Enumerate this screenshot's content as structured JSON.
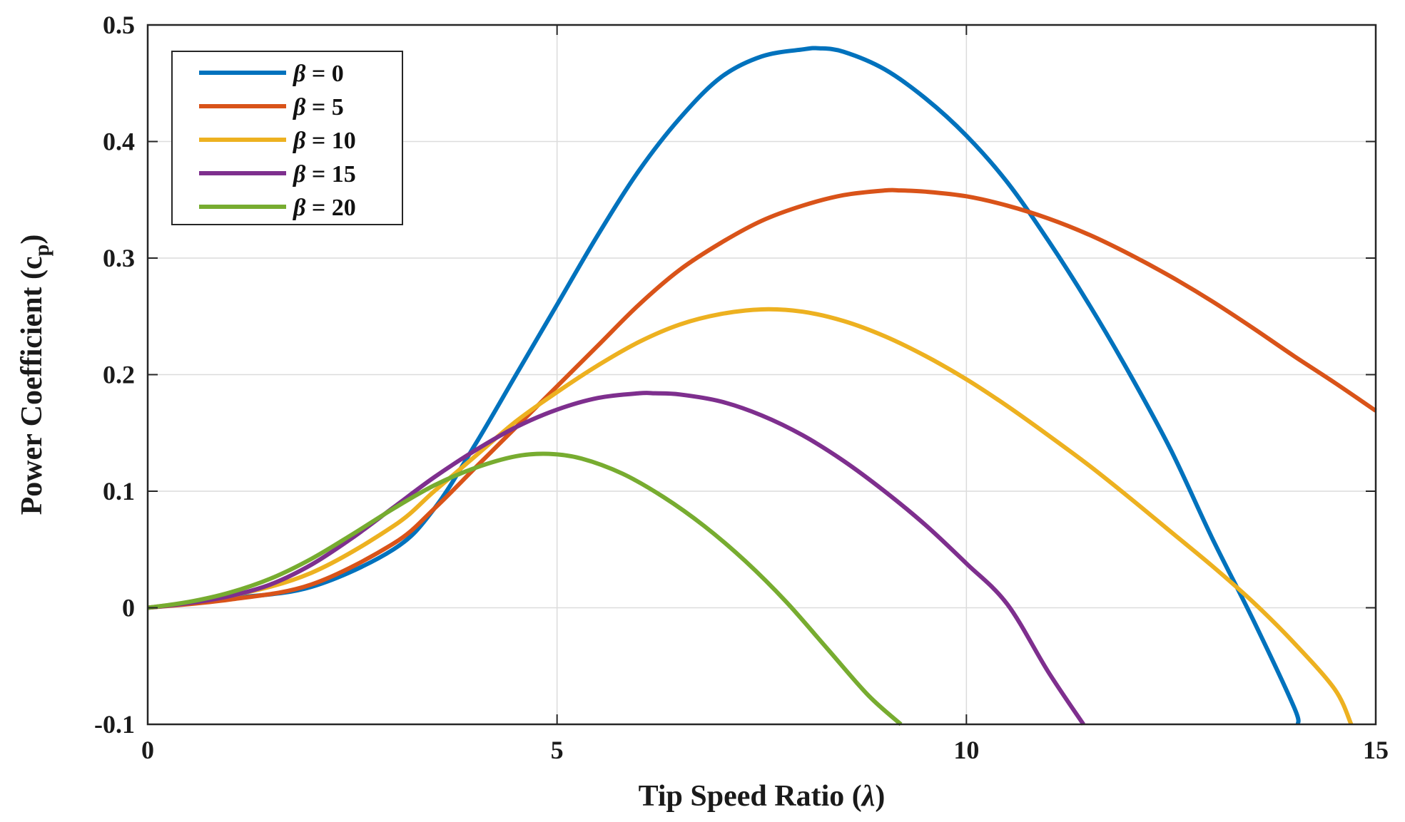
{
  "chart_data": {
    "type": "line",
    "title": "",
    "xlabel": "Tip Speed Ratio (",
    "xlabel_symbol": "λ",
    "xlabel_suffix": ")",
    "ylabel": "Power Coefficient (c",
    "ylabel_sub": "p",
    "ylabel_suffix": ")",
    "xlim": [
      0,
      15
    ],
    "ylim": [
      -0.1,
      0.5
    ],
    "xticks": [
      0,
      5,
      10,
      15
    ],
    "xtick_labels": [
      "0",
      "5",
      "10",
      "15"
    ],
    "yticks": [
      -0.1,
      0,
      0.1,
      0.2,
      0.3,
      0.4,
      0.5
    ],
    "ytick_labels": [
      "-0.1",
      "0",
      "0.1",
      "0.2",
      "0.3",
      "0.4",
      "0.5"
    ],
    "grid": true,
    "legend_position": "top-left",
    "series": [
      {
        "name": "β = 0",
        "greek": "β",
        "value_text": " = 0",
        "color": "#0072BD",
        "x": [
          0,
          1,
          2,
          3,
          3.5,
          4,
          4.5,
          5,
          5.5,
          6,
          6.5,
          7,
          7.5,
          8,
          8.2,
          8.5,
          9,
          9.5,
          10,
          10.5,
          11,
          11.5,
          12,
          12.5,
          13,
          13.5,
          14,
          14.05
        ],
        "y": [
          0,
          0.008,
          0.018,
          0.05,
          0.085,
          0.14,
          0.2,
          0.26,
          0.32,
          0.375,
          0.42,
          0.455,
          0.473,
          0.479,
          0.48,
          0.477,
          0.462,
          0.437,
          0.405,
          0.365,
          0.315,
          0.26,
          0.2,
          0.135,
          0.06,
          -0.01,
          -0.085,
          -0.1
        ]
      },
      {
        "name": "β = 5",
        "greek": "β",
        "value_text": " = 5",
        "color": "#D95319",
        "x": [
          0,
          1,
          2,
          3,
          3.5,
          4,
          4.5,
          5,
          5.5,
          6,
          6.5,
          7,
          7.5,
          8,
          8.5,
          9,
          9.2,
          9.5,
          10,
          10.5,
          11,
          11.5,
          12,
          12.5,
          13,
          13.5,
          14,
          14.5,
          15
        ],
        "y": [
          0,
          0.007,
          0.02,
          0.055,
          0.085,
          0.12,
          0.155,
          0.19,
          0.225,
          0.26,
          0.29,
          0.313,
          0.332,
          0.345,
          0.354,
          0.358,
          0.358,
          0.357,
          0.353,
          0.345,
          0.334,
          0.32,
          0.303,
          0.284,
          0.263,
          0.24,
          0.216,
          0.193,
          0.169
        ]
      },
      {
        "name": "β = 10",
        "greek": "β",
        "value_text": " = 10",
        "color": "#EDB120",
        "x": [
          0,
          1,
          2,
          3,
          3.5,
          4,
          4.5,
          5,
          5.5,
          6,
          6.5,
          7,
          7.5,
          8,
          8.5,
          9,
          9.5,
          10,
          10.5,
          11,
          11.5,
          12,
          12.5,
          13,
          13.5,
          14,
          14.5,
          14.7
        ],
        "y": [
          0,
          0.01,
          0.03,
          0.07,
          0.1,
          0.13,
          0.16,
          0.185,
          0.208,
          0.228,
          0.243,
          0.252,
          0.256,
          0.254,
          0.246,
          0.233,
          0.216,
          0.196,
          0.173,
          0.148,
          0.122,
          0.094,
          0.065,
          0.036,
          0.005,
          -0.03,
          -0.07,
          -0.1
        ]
      },
      {
        "name": "β = 15",
        "greek": "β",
        "value_text": " = 15",
        "color": "#7E2F8E",
        "x": [
          0,
          0.5,
          1,
          1.5,
          2,
          2.5,
          3,
          3.5,
          4,
          4.5,
          5,
          5.5,
          6,
          6.2,
          6.5,
          7,
          7.5,
          8,
          8.5,
          9,
          9.5,
          10,
          10.5,
          11,
          11.43
        ],
        "y": [
          0,
          0.004,
          0.01,
          0.02,
          0.037,
          0.06,
          0.086,
          0.112,
          0.135,
          0.155,
          0.17,
          0.18,
          0.184,
          0.184,
          0.183,
          0.177,
          0.165,
          0.148,
          0.126,
          0.1,
          0.071,
          0.038,
          0.003,
          -0.055,
          -0.1
        ]
      },
      {
        "name": "β = 20",
        "greek": "β",
        "value_text": " = 20",
        "color": "#77AC30",
        "x": [
          0,
          0.5,
          1,
          1.5,
          2,
          2.5,
          3,
          3.5,
          4,
          4.5,
          4.9,
          5.3,
          5.8,
          6.3,
          6.8,
          7.3,
          7.8,
          8.3,
          8.8,
          9.2
        ],
        "y": [
          0,
          0.005,
          0.013,
          0.025,
          0.042,
          0.063,
          0.085,
          0.105,
          0.12,
          0.13,
          0.132,
          0.128,
          0.115,
          0.095,
          0.07,
          0.04,
          0.005,
          -0.035,
          -0.075,
          -0.1
        ]
      }
    ]
  }
}
